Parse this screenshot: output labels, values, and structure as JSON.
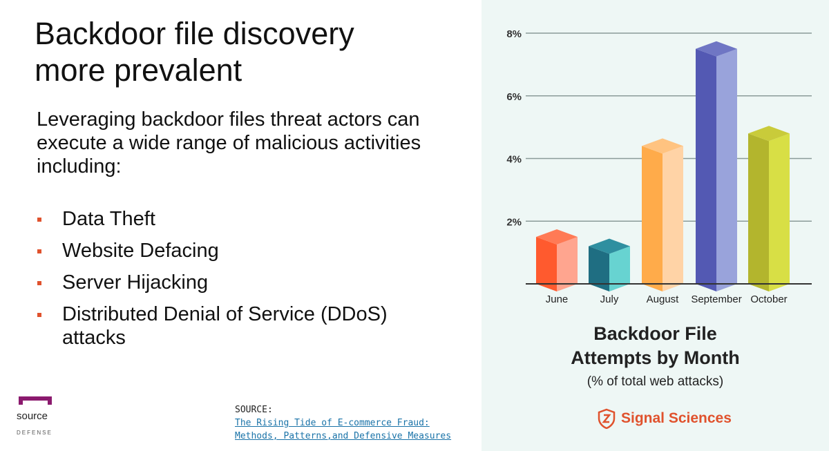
{
  "slide": {
    "title_line1": "Backdoor file discovery",
    "title_line2": "more prevalent",
    "intro": "Leveraging backdoor files threat actors can execute a wide range of malicious activities including:",
    "bullets": [
      "Data Theft",
      "Website Defacing",
      "Server Hijacking",
      "Distributed Denial of Service (DDoS) attacks"
    ],
    "bullet_color": "#e0522d"
  },
  "logo": {
    "word": "source",
    "sub": "DEFENSE",
    "color": "#8b1a6e"
  },
  "source": {
    "label": "SOURCE:",
    "link_line1": "The Rising Tide of E-commerce Fraud:",
    "link_line2": "Methods, Patterns,and Defensive Measures"
  },
  "brand": {
    "name": "Signal Sciences",
    "color": "#e0522d",
    "icon": "shield-logo-icon"
  },
  "chart_data": {
    "type": "bar",
    "title_line1": "Backdoor File",
    "title_line2": "Attempts by Month",
    "subtitle": "(% of total web attacks)",
    "categories": [
      "June",
      "July",
      "August",
      "September",
      "October"
    ],
    "values": [
      1.5,
      1.2,
      4.4,
      7.5,
      4.8
    ],
    "yticks": [
      "2%",
      "4%",
      "6%",
      "8%"
    ],
    "ylim": [
      0,
      8
    ],
    "grid": true,
    "colors": [
      "#ff5a2e",
      "#1f6e82",
      "#ffab4a",
      "#5359b3",
      "#b3b52d"
    ],
    "side_colors": [
      "#ffa58f",
      "#67d3d1",
      "#ffd3a6",
      "#99a3db",
      "#d8df45"
    ],
    "top_colors": [
      "#ff7a55",
      "#2f8fa0",
      "#ffc380",
      "#6f76c4",
      "#c9cb3a"
    ]
  }
}
